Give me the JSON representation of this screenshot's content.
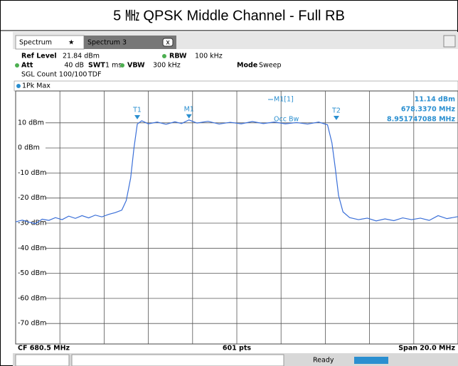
{
  "title": "5 ㎒ QPSK Middle Channel - Full RB",
  "tabs": [
    "Spectrum",
    "Spectrum 3"
  ],
  "settings": {
    "ref_level_label": "Ref Level",
    "ref_level": "21.84 dBm",
    "att_label": "Att",
    "att": "40 dB",
    "swt_label": "SWT",
    "swt": "1 ms",
    "rbw_label": "RBW",
    "rbw": "100 kHz",
    "vbw_label": "VBW",
    "vbw": "300 kHz",
    "mode_label": "Mode",
    "mode": "Sweep",
    "sgl_count": "SGL Count 100/100",
    "tdf": "TDF"
  },
  "trace_label": "1Pk Max",
  "chart_data": {
    "type": "line",
    "x": [
      670.5,
      670.8,
      671.1,
      671.4,
      671.7,
      672.0,
      672.3,
      672.6,
      672.9,
      673.2,
      673.5,
      673.8,
      674.1,
      674.4,
      674.7,
      675.0,
      675.3,
      675.5,
      675.7,
      675.85,
      676.0,
      676.2,
      676.5,
      676.9,
      677.3,
      677.7,
      678.0,
      678.337,
      678.7,
      679.2,
      679.7,
      680.2,
      680.7,
      681.2,
      681.7,
      682.2,
      682.7,
      683.2,
      683.7,
      684.2,
      684.6,
      684.8,
      684.95,
      685.1,
      685.3,
      685.6,
      686.0,
      686.4,
      686.8,
      687.2,
      687.6,
      688.0,
      688.4,
      688.8,
      689.2,
      689.6,
      690.0,
      690.5
    ],
    "series": [
      {
        "name": "1Pk Max",
        "color": "#3a6fd8",
        "values": [
          -29.5,
          -28.8,
          -29.6,
          -30.2,
          -28.4,
          -28.9,
          -27.8,
          -28.6,
          -27.2,
          -28.1,
          -27.0,
          -27.9,
          -26.8,
          -27.5,
          -26.5,
          -25.8,
          -24.8,
          -21.0,
          -12.0,
          0.0,
          9.5,
          10.8,
          9.6,
          10.3,
          9.4,
          10.4,
          9.7,
          11.14,
          9.9,
          10.6,
          9.5,
          10.2,
          9.6,
          10.5,
          9.7,
          10.3,
          9.6,
          10.1,
          9.5,
          10.3,
          9.2,
          2.0,
          -8.0,
          -19.0,
          -25.5,
          -27.8,
          -28.6,
          -28.0,
          -29.1,
          -28.3,
          -29.0,
          -27.9,
          -28.6,
          -28.0,
          -28.9,
          -27.0,
          -28.2,
          -27.4
        ]
      }
    ],
    "xlim": [
      670.5,
      690.5
    ],
    "xticks": [
      672.5,
      674.5,
      676.5,
      678.5,
      680.5,
      682.5,
      684.5,
      686.5,
      688.5
    ],
    "ylim": [
      -78.16,
      21.84
    ],
    "yticks": [
      {
        "value": 10,
        "label": "10 dBm"
      },
      {
        "value": 0,
        "label": "0 dBm"
      },
      {
        "value": -10,
        "label": "-10 dBm"
      },
      {
        "value": -20,
        "label": "-20 dBm"
      },
      {
        "value": -30,
        "label": "-30 dBm"
      },
      {
        "value": -40,
        "label": "-40 dBm"
      },
      {
        "value": -50,
        "label": "-50 dBm"
      },
      {
        "value": -60,
        "label": "-60 dBm"
      },
      {
        "value": -70,
        "label": "-70 dBm"
      }
    ],
    "grid": true,
    "marker_color": "#2a8fd0",
    "markers": [
      {
        "name": "T1",
        "x": 676.0,
        "value": 10.8
      },
      {
        "name": "M1",
        "x": 678.337,
        "value": 11.14
      },
      {
        "name": "T2",
        "x": 685.0,
        "value": 10.5
      }
    ]
  },
  "readout": {
    "marker": "M1[1]",
    "level": "11.14 dBm",
    "frequency": "678.3370 MHz",
    "occ_bw_label": "Occ Bw",
    "occ_bw": "8.951747088 MHz"
  },
  "footer": {
    "center": "CF 680.5 MHz",
    "points": "601 pts",
    "span": "Span 20.0 MHz"
  },
  "status": "Ready"
}
